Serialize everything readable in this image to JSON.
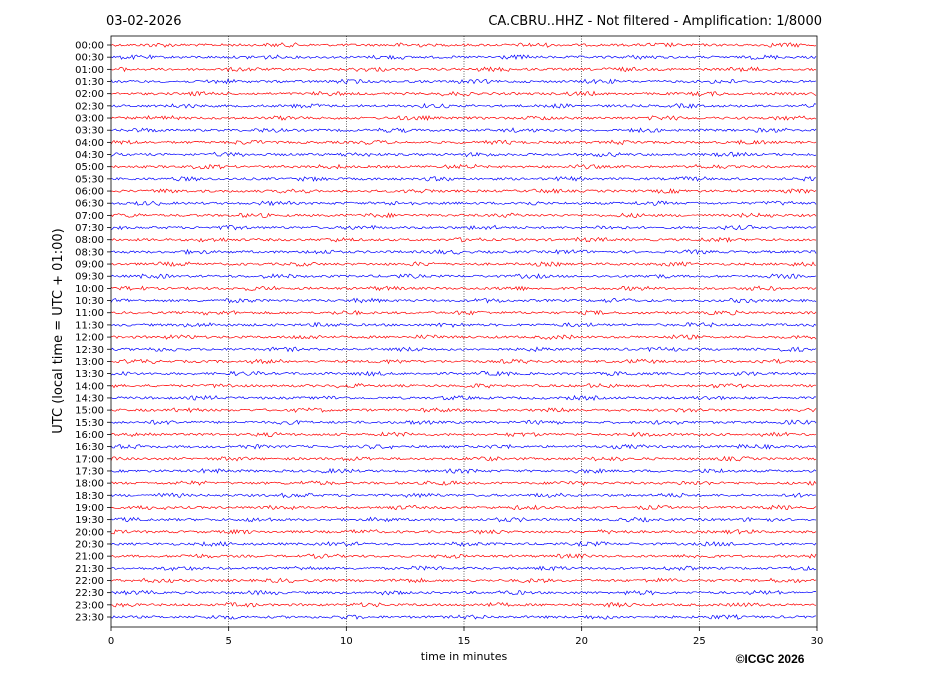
{
  "chart_data": {
    "type": "helicorder",
    "date": "03-02-2026",
    "title": "CA.CBRU..HHZ - Not filtered - Amplification: 1/8000",
    "ylabel": "UTC (local time = UTC + 01:00)",
    "xlabel": "time in minutes",
    "copyright": "©ICGC 2026",
    "categories": [
      "00:00",
      "00:30",
      "01:00",
      "01:30",
      "02:00",
      "02:30",
      "03:00",
      "03:30",
      "04:00",
      "04:30",
      "05:00",
      "05:30",
      "06:00",
      "06:30",
      "07:00",
      "07:30",
      "08:00",
      "08:30",
      "09:00",
      "09:30",
      "10:00",
      "10:30",
      "11:00",
      "11:30",
      "12:00",
      "12:30",
      "13:00",
      "13:30",
      "14:00",
      "14:30",
      "15:00",
      "15:30",
      "16:00",
      "16:30",
      "17:00",
      "17:30",
      "18:00",
      "18:30",
      "19:00",
      "19:30",
      "20:00",
      "20:30",
      "21:00",
      "21:30",
      "22:00",
      "22:30",
      "23:00",
      "23:30"
    ],
    "colors": [
      "#ff0000",
      "#0000ff"
    ],
    "xlim": [
      0,
      30
    ],
    "xticks": [
      0,
      5,
      10,
      15,
      20,
      25,
      30
    ],
    "grid": true
  }
}
